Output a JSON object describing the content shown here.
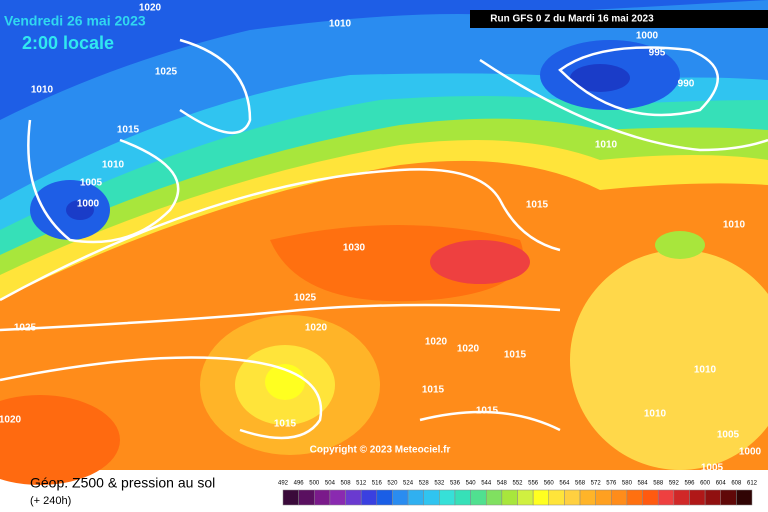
{
  "header": {
    "valid_date": "Vendredi 26 mai 2023",
    "local_time": "2:00 locale",
    "run": "Run GFS 0 Z du Mardi 16 mai 2023"
  },
  "isobar_labels": [
    "1020",
    "1010",
    "1025",
    "1010",
    "1015",
    "1010",
    "1005",
    "1000",
    "1000",
    "995",
    "990",
    "1010",
    "1015",
    "1030",
    "1010",
    "1025",
    "1020",
    "1025",
    "1020",
    "1020",
    "1015",
    "1010",
    "1015",
    "1015",
    "1010",
    "1020",
    "1015",
    "1005",
    "1000",
    "1005"
  ],
  "copyright": "Copyright © 2023 Meteociel.fr",
  "footer": {
    "title": "Géop. Z500 & pression au sol",
    "lead": "(+ 240h)"
  },
  "scale": {
    "labels": [
      "492",
      "496",
      "500",
      "504",
      "508",
      "512",
      "516",
      "520",
      "524",
      "528",
      "532",
      "536",
      "540",
      "544",
      "548",
      "552",
      "556",
      "560",
      "564",
      "568",
      "572",
      "576",
      "580",
      "584",
      "588",
      "592",
      "596",
      "600",
      "604",
      "608",
      "612"
    ]
  }
}
